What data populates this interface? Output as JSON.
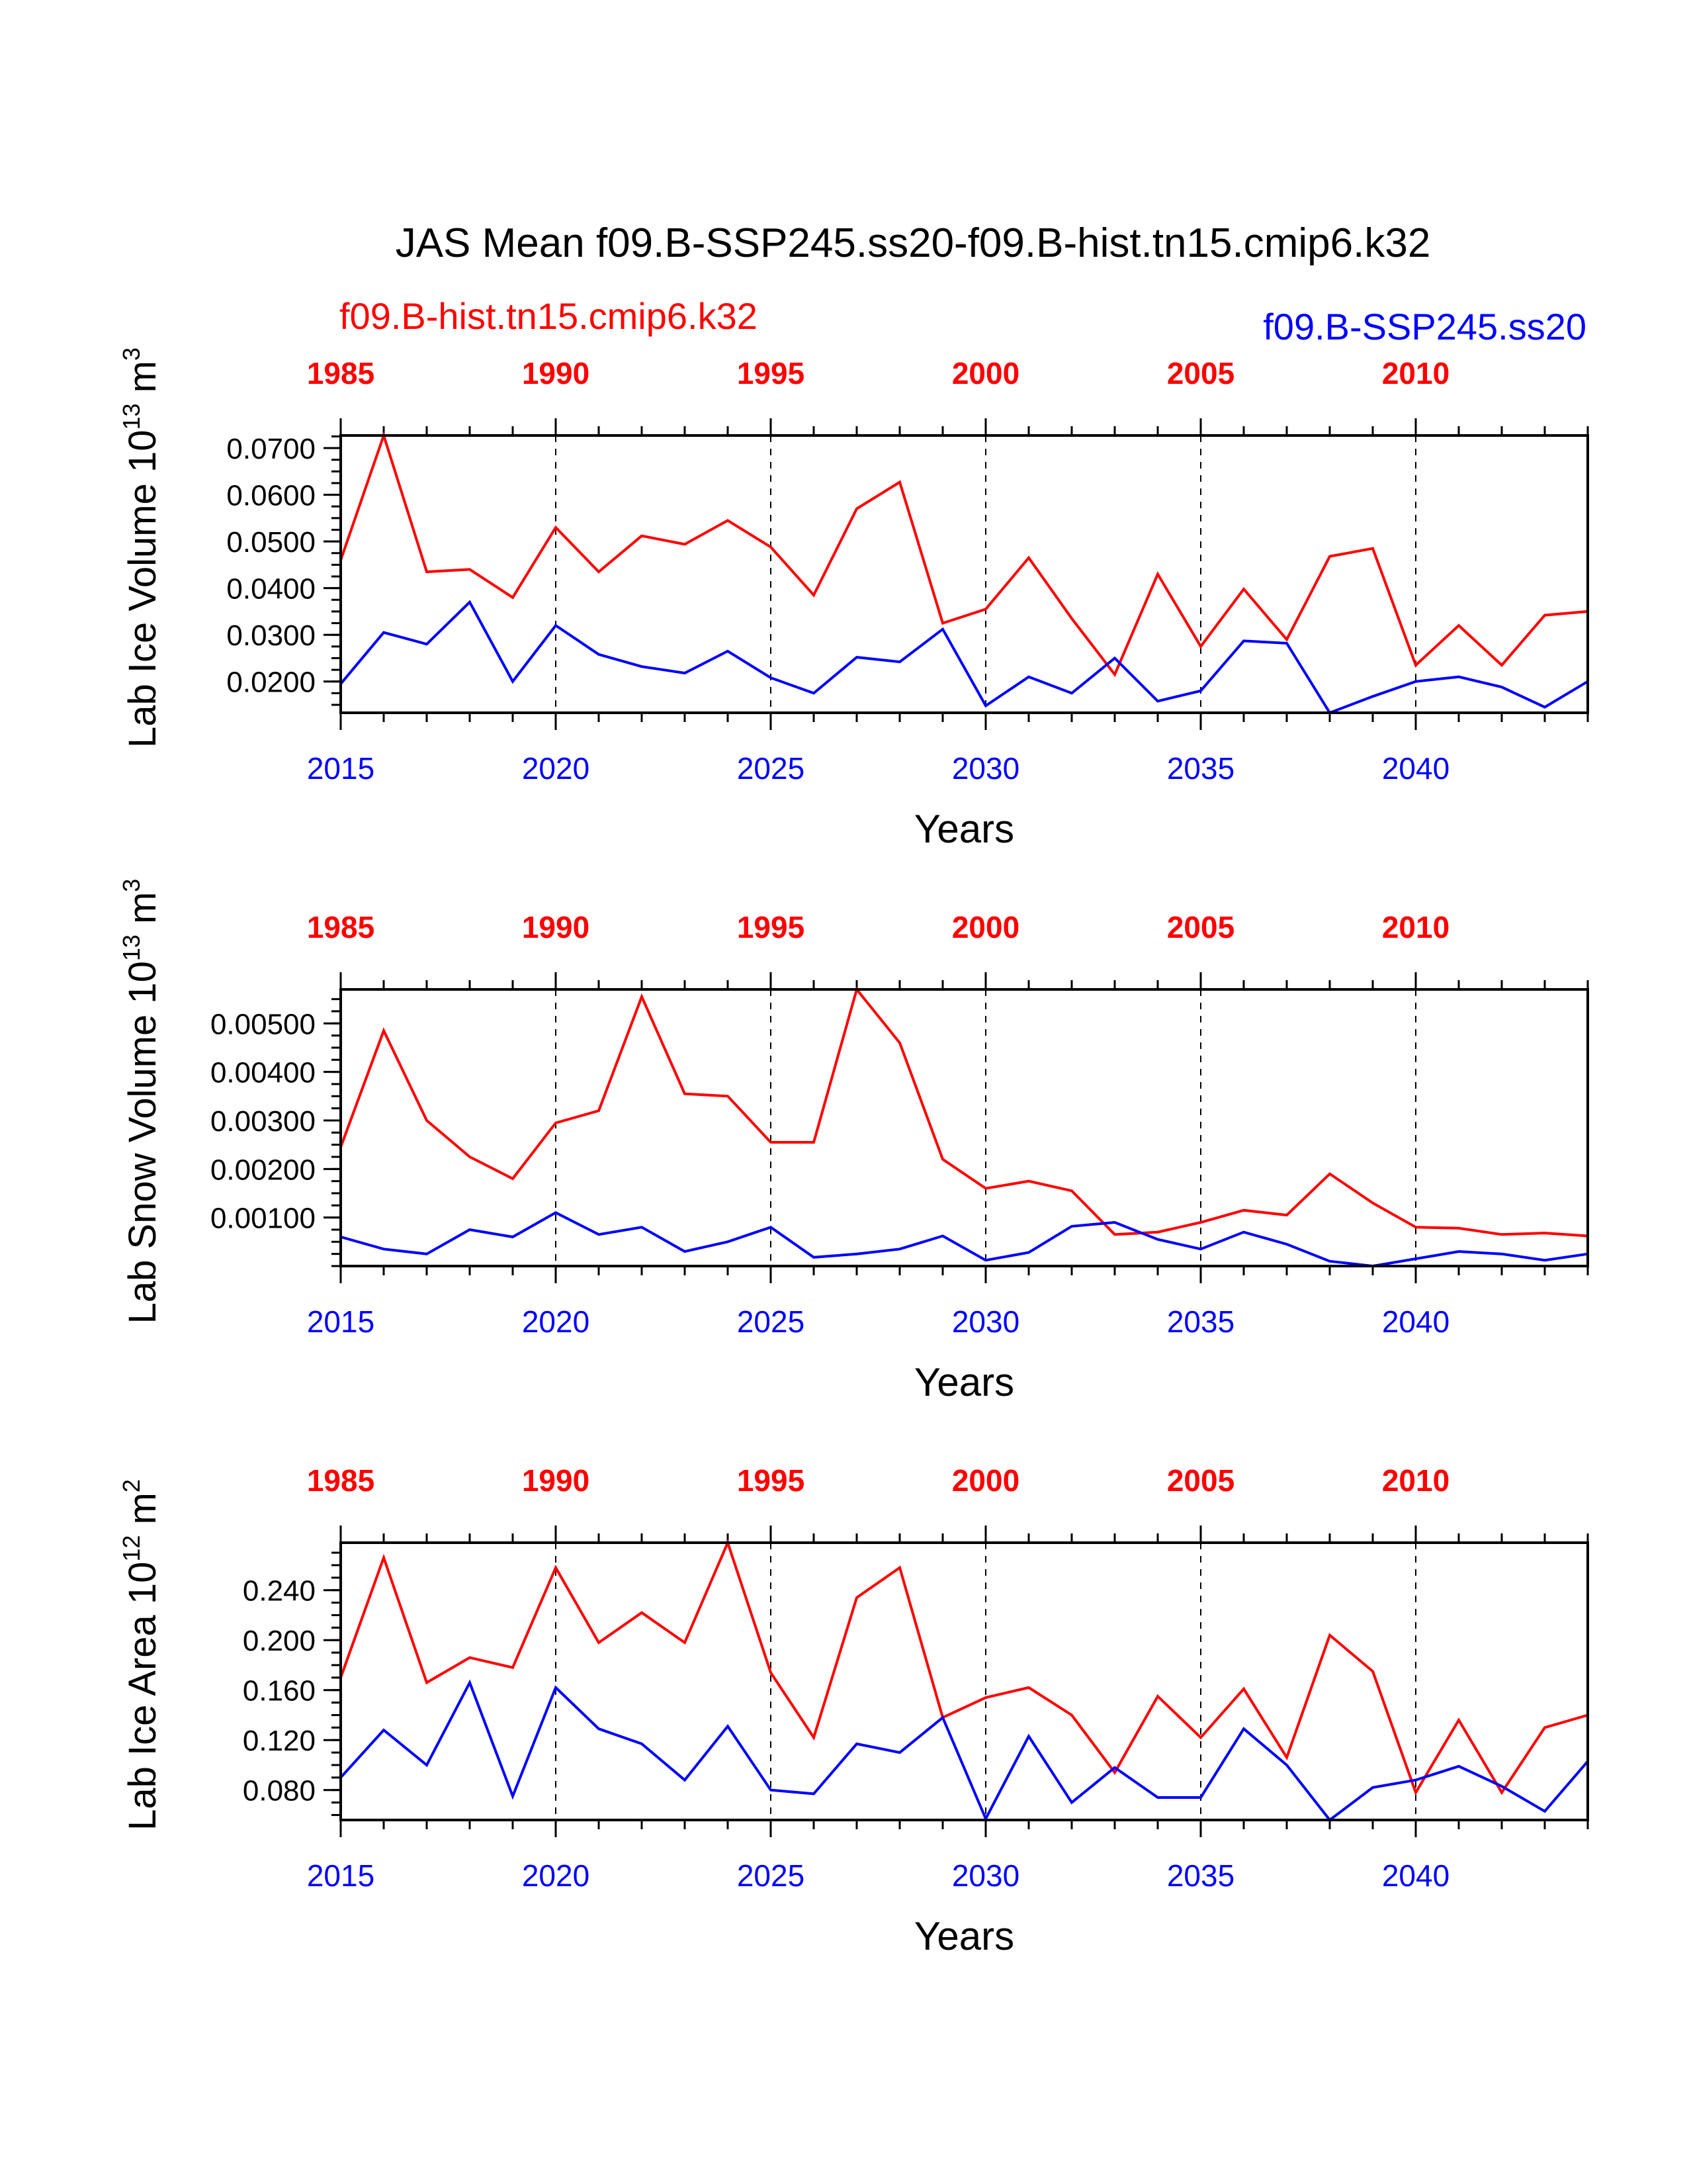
{
  "figure": {
    "title": "JAS Mean f09.B-SSP245.ss20-f09.B-hist.tn15.cmip6.k32",
    "legend_left": "f09.B-hist.tn15.cmip6.k32",
    "legend_right": "f09.B-SSP245.ss20",
    "colors": {
      "hist": "#ff0000",
      "ssp": "#0000ff",
      "axis": "#000000"
    }
  },
  "chart_data": [
    {
      "type": "line",
      "ylabel": "Lab Ice Volume 10",
      "ylabel_exp": "13",
      "ylabel_unit": " m",
      "ylabel_unit_exp": "3",
      "xlabel": "Years",
      "xlim": [
        2015,
        2044
      ],
      "ylim": [
        0.0133,
        0.0727
      ],
      "yticks": [
        0.02,
        0.03,
        0.04,
        0.05,
        0.06,
        0.07
      ],
      "yticklabels": [
        "0.0200",
        "0.0300",
        "0.0400",
        "0.0500",
        "0.0600",
        "0.0700"
      ],
      "yminor": 0.0025,
      "bottom_ticks": [
        2015,
        2020,
        2025,
        2030,
        2035,
        2040
      ],
      "bottom_ticklabels": [
        "2015",
        "2020",
        "2025",
        "2030",
        "2035",
        "2040"
      ],
      "top_ticklabels": [
        "1985",
        "1990",
        "1995",
        "2000",
        "2005",
        "2010"
      ],
      "gridlines_x": [
        2020,
        2025,
        2030,
        2035,
        2040
      ],
      "x": [
        2015,
        2016,
        2017,
        2018,
        2019,
        2020,
        2021,
        2022,
        2023,
        2024,
        2025,
        2026,
        2027,
        2028,
        2029,
        2030,
        2031,
        2032,
        2033,
        2034,
        2035,
        2036,
        2037,
        2038,
        2039,
        2040,
        2041,
        2042,
        2043,
        2044
      ],
      "series": [
        {
          "name": "f09.B-hist.tn15.cmip6.k32",
          "color": "#ff0000",
          "values": [
            0.046,
            0.0727,
            0.0435,
            0.044,
            0.038,
            0.053,
            0.0435,
            0.0512,
            0.0494,
            0.0545,
            0.0488,
            0.0385,
            0.057,
            0.0627,
            0.0325,
            0.0355,
            0.0465,
            0.0335,
            0.0215,
            0.043,
            0.0275,
            0.0398,
            0.029,
            0.0468,
            0.0485,
            0.0235,
            0.032,
            0.0235,
            0.0342,
            0.035
          ]
        },
        {
          "name": "f09.B-SSP245.ss20",
          "color": "#0000ff",
          "values": [
            0.0195,
            0.0305,
            0.028,
            0.037,
            0.02,
            0.032,
            0.0258,
            0.0232,
            0.0218,
            0.0265,
            0.0208,
            0.0175,
            0.0252,
            0.0242,
            0.0312,
            0.0148,
            0.021,
            0.0175,
            0.025,
            0.0158,
            0.018,
            0.0287,
            0.0282,
            0.0133,
            0.0168,
            0.02,
            0.021,
            0.0188,
            0.0145,
            0.02
          ]
        }
      ]
    },
    {
      "type": "line",
      "ylabel": "Lab Snow Volume 10",
      "ylabel_exp": "13",
      "ylabel_unit": " m",
      "ylabel_unit_exp": "3",
      "xlabel": "Years",
      "xlim": [
        2015,
        2044
      ],
      "ylim": [
        0.0,
        0.0057
      ],
      "yticks": [
        0.001,
        0.002,
        0.003,
        0.004,
        0.005
      ],
      "yticklabels": [
        "0.00100",
        "0.00200",
        "0.00300",
        "0.00400",
        "0.00500"
      ],
      "yminor": 0.00025,
      "bottom_ticks": [
        2015,
        2020,
        2025,
        2030,
        2035,
        2040
      ],
      "bottom_ticklabels": [
        "2015",
        "2020",
        "2025",
        "2030",
        "2035",
        "2040"
      ],
      "top_ticklabels": [
        "1985",
        "1990",
        "1995",
        "2000",
        "2005",
        "2010"
      ],
      "gridlines_x": [
        2020,
        2025,
        2030,
        2035,
        2040
      ],
      "x": [
        2015,
        2016,
        2017,
        2018,
        2019,
        2020,
        2021,
        2022,
        2023,
        2024,
        2025,
        2026,
        2027,
        2028,
        2029,
        2030,
        2031,
        2032,
        2033,
        2034,
        2035,
        2036,
        2037,
        2038,
        2039,
        2040,
        2041,
        2042,
        2043,
        2044
      ],
      "series": [
        {
          "name": "f09.B-hist.tn15.cmip6.k32",
          "color": "#ff0000",
          "values": [
            0.00245,
            0.00485,
            0.003,
            0.00225,
            0.0018,
            0.00295,
            0.0032,
            0.00555,
            0.00355,
            0.0035,
            0.00255,
            0.00255,
            0.0057,
            0.0046,
            0.0022,
            0.0016,
            0.00175,
            0.00155,
            0.00065,
            0.0007,
            0.0009,
            0.00115,
            0.00105,
            0.0019,
            0.0013,
            0.0008,
            0.00078,
            0.00065,
            0.00068,
            0.00062
          ]
        },
        {
          "name": "f09.B-SSP245.ss20",
          "color": "#0000ff",
          "values": [
            0.0006,
            0.00035,
            0.00025,
            0.00075,
            0.0006,
            0.0011,
            0.00065,
            0.0008,
            0.0003,
            0.0005,
            0.0008,
            0.00018,
            0.00025,
            0.00035,
            0.00062,
            0.00012,
            0.00028,
            0.00082,
            0.0009,
            0.00055,
            0.00035,
            0.0007,
            0.00045,
            0.0001,
            0.0,
            0.00015,
            0.0003,
            0.00025,
            0.00012,
            0.00025
          ]
        }
      ]
    },
    {
      "type": "line",
      "ylabel": "Lab Ice Area 10",
      "ylabel_exp": "12",
      "ylabel_unit": " m",
      "ylabel_unit_exp": "2",
      "xlabel": "Years",
      "xlim": [
        2015,
        2044
      ],
      "ylim": [
        0.056,
        0.278
      ],
      "yticks": [
        0.08,
        0.12,
        0.16,
        0.2,
        0.24
      ],
      "yticklabels": [
        "0.080",
        "0.120",
        "0.160",
        "0.200",
        "0.240"
      ],
      "yminor": 0.01,
      "bottom_ticks": [
        2015,
        2020,
        2025,
        2030,
        2035,
        2040
      ],
      "bottom_ticklabels": [
        "2015",
        "2020",
        "2025",
        "2030",
        "2035",
        "2040"
      ],
      "top_ticklabels": [
        "1985",
        "1990",
        "1995",
        "2000",
        "2005",
        "2010"
      ],
      "gridlines_x": [
        2020,
        2025,
        2030,
        2035,
        2040
      ],
      "x": [
        2015,
        2016,
        2017,
        2018,
        2019,
        2020,
        2021,
        2022,
        2023,
        2024,
        2025,
        2026,
        2027,
        2028,
        2029,
        2030,
        2031,
        2032,
        2033,
        2034,
        2035,
        2036,
        2037,
        2038,
        2039,
        2040,
        2041,
        2042,
        2043,
        2044
      ],
      "series": [
        {
          "name": "f09.B-hist.tn15.cmip6.k32",
          "color": "#ff0000",
          "values": [
            0.17,
            0.266,
            0.166,
            0.186,
            0.178,
            0.258,
            0.198,
            0.222,
            0.198,
            0.278,
            0.174,
            0.122,
            0.234,
            0.258,
            0.138,
            0.154,
            0.162,
            0.14,
            0.094,
            0.155,
            0.122,
            0.161,
            0.106,
            0.204,
            0.175,
            0.078,
            0.136,
            0.078,
            0.13,
            0.14
          ]
        },
        {
          "name": "f09.B-SSP245.ss20",
          "color": "#0000ff",
          "values": [
            0.09,
            0.128,
            0.1,
            0.166,
            0.075,
            0.162,
            0.129,
            0.117,
            0.088,
            0.131,
            0.08,
            0.077,
            0.117,
            0.11,
            0.138,
            0.057,
            0.123,
            0.07,
            0.098,
            0.074,
            0.074,
            0.129,
            0.1,
            0.056,
            0.082,
            0.088,
            0.099,
            0.083,
            0.063,
            0.103
          ]
        }
      ]
    }
  ]
}
